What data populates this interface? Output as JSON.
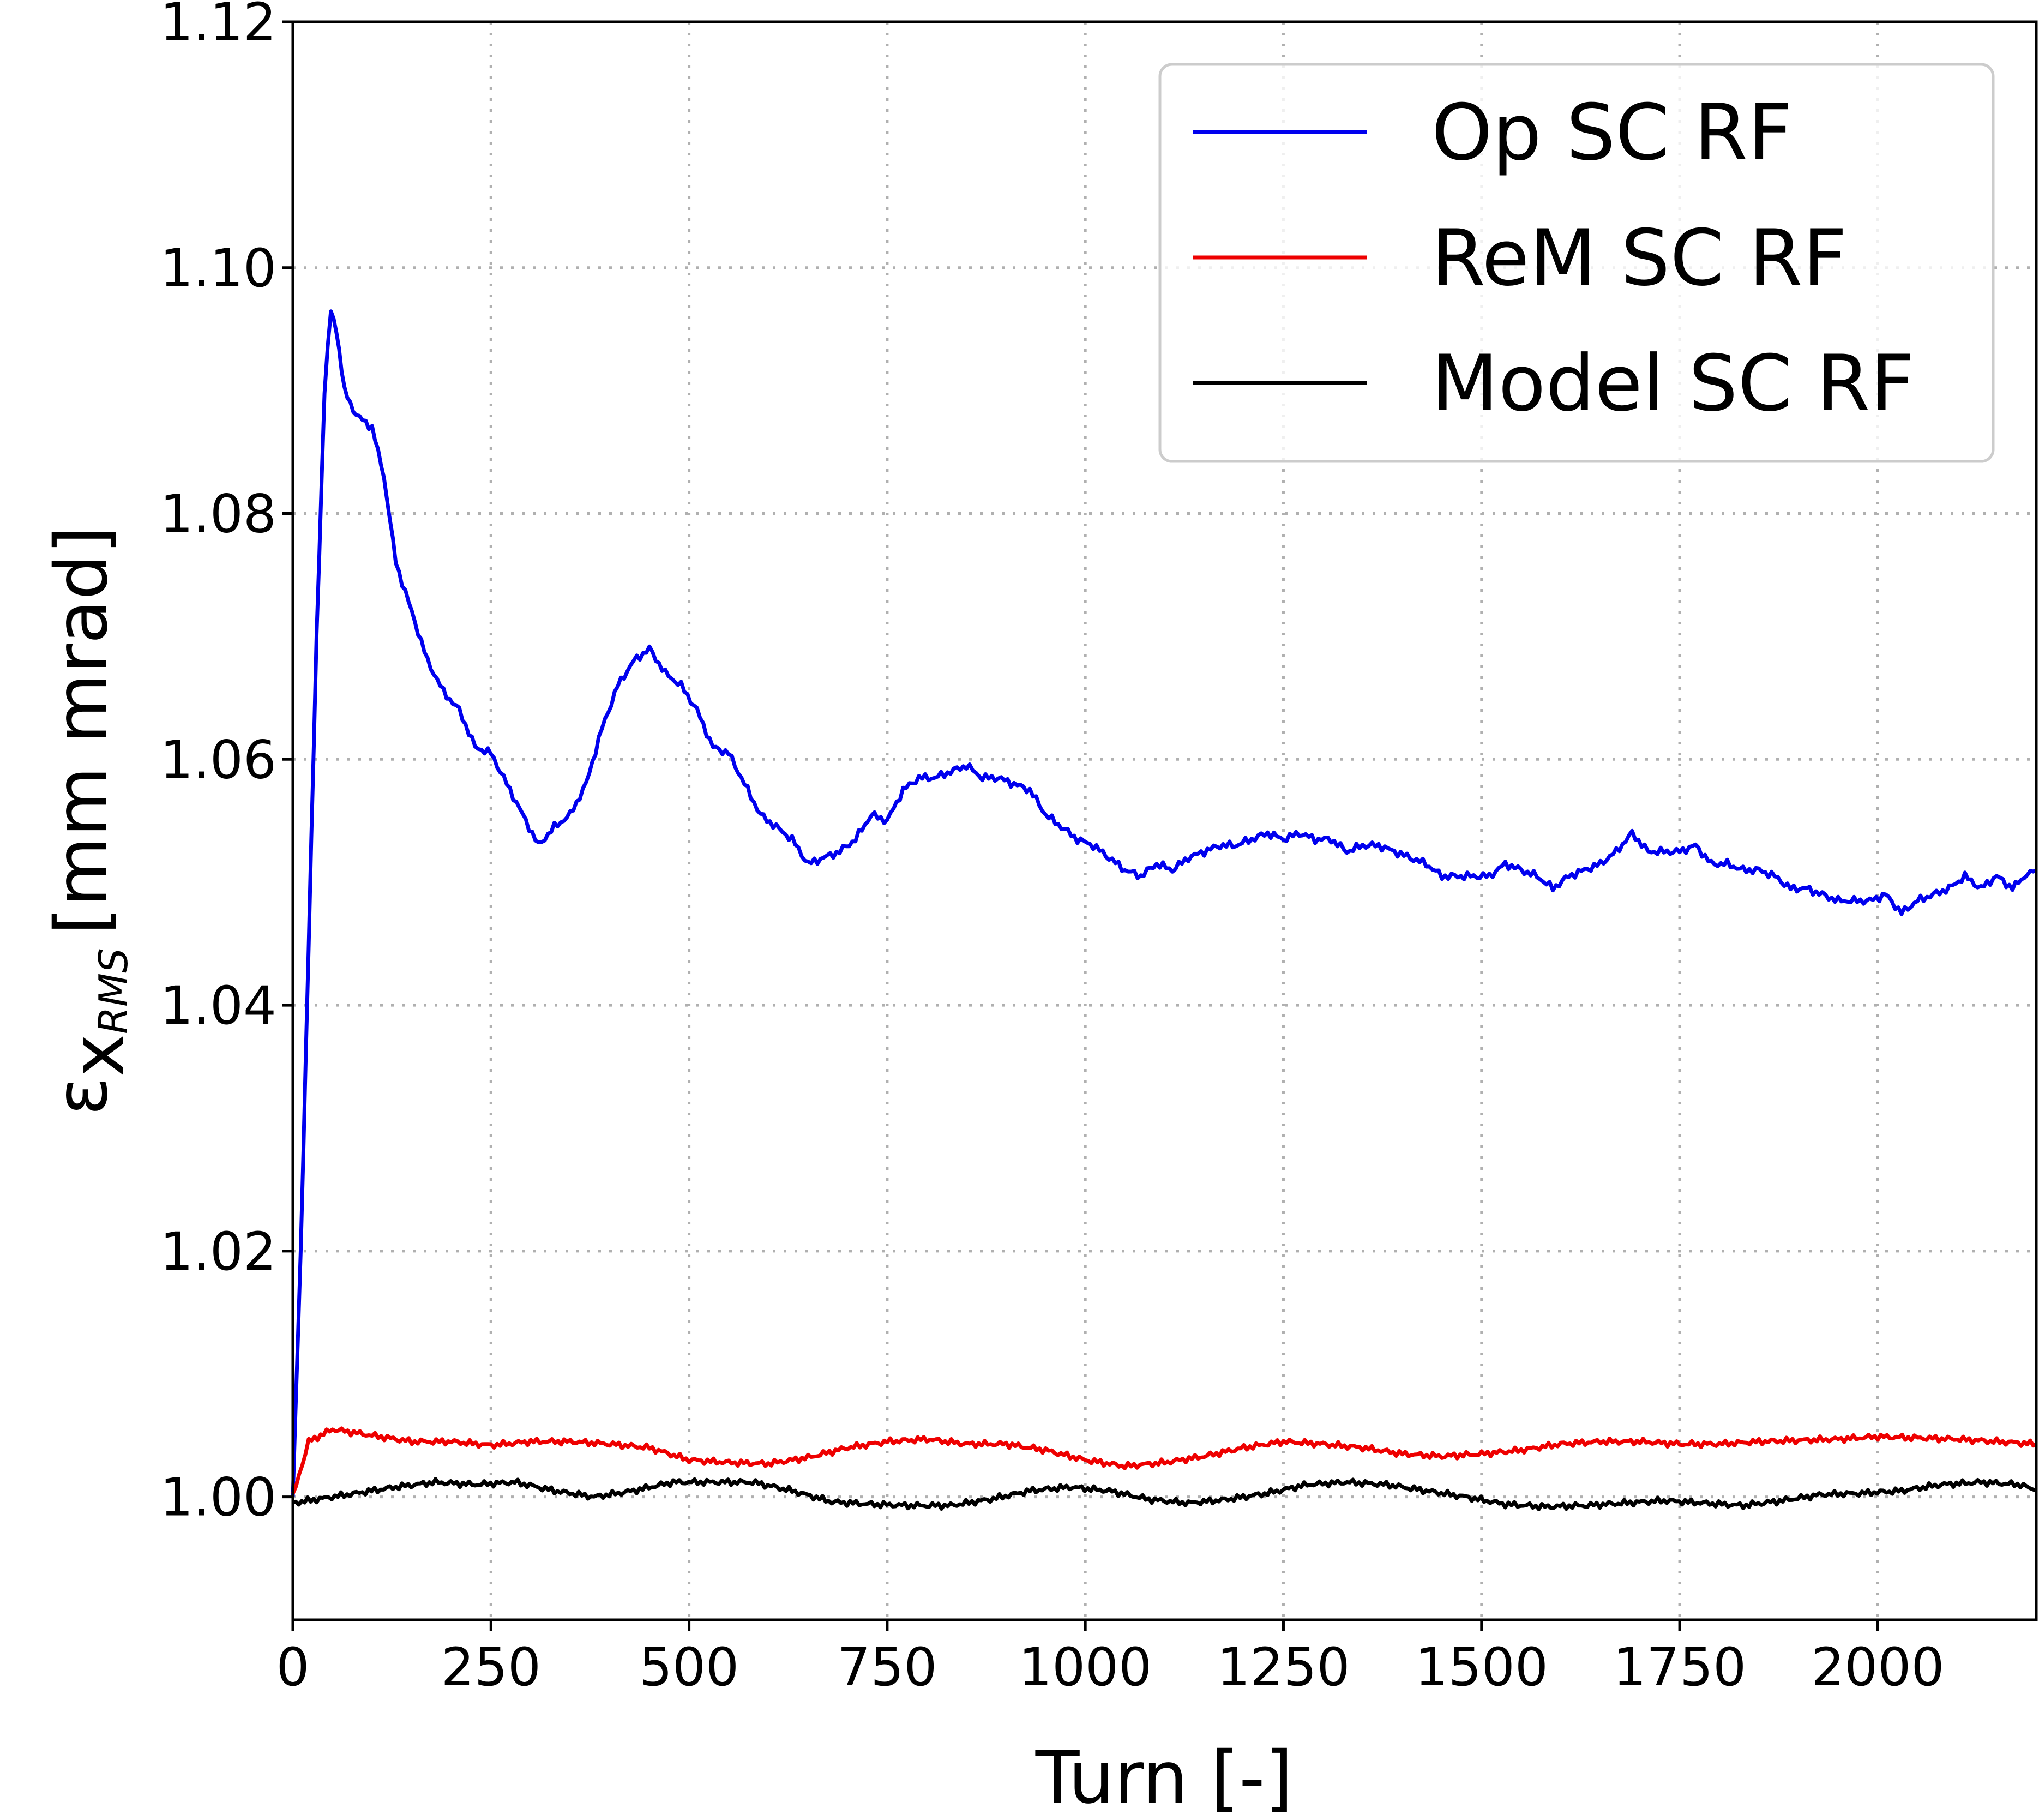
{
  "chart_data": {
    "type": "line",
    "xlabel": "Turn [-]",
    "ylabel": {
      "symbol": "ε",
      "subscript": "x",
      "subsubscript": "RMS",
      "units": "[mm mrad]"
    },
    "xlim": [
      0,
      2200
    ],
    "ylim": [
      0.99,
      1.12
    ],
    "x_ticks": [
      "0",
      "250",
      "500",
      "750",
      "1000",
      "1250",
      "1500",
      "1750",
      "2000"
    ],
    "y_ticks": [
      "1.00",
      "1.02",
      "1.04",
      "1.06",
      "1.08",
      "1.10",
      "1.12"
    ],
    "grid": true,
    "grid_style": "dotted",
    "legend_position": "top-right",
    "series": [
      {
        "name": "Op SC RF",
        "color": "#0000ee",
        "points": [
          [
            0,
            1.0
          ],
          [
            10,
            1.02
          ],
          [
            20,
            1.045
          ],
          [
            30,
            1.07
          ],
          [
            40,
            1.09
          ],
          [
            48,
            1.0965
          ],
          [
            55,
            1.095
          ],
          [
            65,
            1.09
          ],
          [
            80,
            1.088
          ],
          [
            100,
            1.087
          ],
          [
            115,
            1.083
          ],
          [
            130,
            1.076
          ],
          [
            150,
            1.072
          ],
          [
            170,
            1.068
          ],
          [
            190,
            1.0655
          ],
          [
            210,
            1.064
          ],
          [
            230,
            1.061
          ],
          [
            250,
            1.0605
          ],
          [
            270,
            1.058
          ],
          [
            290,
            1.0555
          ],
          [
            310,
            1.053
          ],
          [
            330,
            1.0545
          ],
          [
            350,
            1.0555
          ],
          [
            370,
            1.058
          ],
          [
            390,
            1.0625
          ],
          [
            410,
            1.066
          ],
          [
            430,
            1.068
          ],
          [
            450,
            1.069
          ],
          [
            470,
            1.067
          ],
          [
            490,
            1.066
          ],
          [
            510,
            1.064
          ],
          [
            530,
            1.061
          ],
          [
            550,
            1.0605
          ],
          [
            570,
            1.058
          ],
          [
            590,
            1.0555
          ],
          [
            610,
            1.0545
          ],
          [
            630,
            1.0535
          ],
          [
            650,
            1.0515
          ],
          [
            670,
            1.052
          ],
          [
            690,
            1.0525
          ],
          [
            710,
            1.0535
          ],
          [
            730,
            1.0555
          ],
          [
            750,
            1.055
          ],
          [
            770,
            1.0575
          ],
          [
            790,
            1.0585
          ],
          [
            810,
            1.0585
          ],
          [
            830,
            1.059
          ],
          [
            850,
            1.0595
          ],
          [
            870,
            1.0585
          ],
          [
            890,
            1.0585
          ],
          [
            910,
            1.058
          ],
          [
            930,
            1.0575
          ],
          [
            950,
            1.0555
          ],
          [
            970,
            1.0545
          ],
          [
            990,
            1.0535
          ],
          [
            1010,
            1.053
          ],
          [
            1030,
            1.052
          ],
          [
            1050,
            1.051
          ],
          [
            1070,
            1.0505
          ],
          [
            1090,
            1.0515
          ],
          [
            1110,
            1.051
          ],
          [
            1130,
            1.052
          ],
          [
            1150,
            1.0525
          ],
          [
            1170,
            1.053
          ],
          [
            1190,
            1.053
          ],
          [
            1210,
            1.0535
          ],
          [
            1230,
            1.054
          ],
          [
            1250,
            1.0535
          ],
          [
            1270,
            1.054
          ],
          [
            1290,
            1.0535
          ],
          [
            1310,
            1.0535
          ],
          [
            1330,
            1.0525
          ],
          [
            1350,
            1.053
          ],
          [
            1370,
            1.053
          ],
          [
            1390,
            1.0525
          ],
          [
            1410,
            1.052
          ],
          [
            1430,
            1.0515
          ],
          [
            1450,
            1.0505
          ],
          [
            1470,
            1.0505
          ],
          [
            1490,
            1.0505
          ],
          [
            1510,
            1.0505
          ],
          [
            1530,
            1.0515
          ],
          [
            1550,
            1.051
          ],
          [
            1570,
            1.0505
          ],
          [
            1590,
            1.0495
          ],
          [
            1610,
            1.0505
          ],
          [
            1630,
            1.051
          ],
          [
            1650,
            1.0515
          ],
          [
            1670,
            1.0525
          ],
          [
            1690,
            1.054
          ],
          [
            1710,
            1.0525
          ],
          [
            1730,
            1.0525
          ],
          [
            1750,
            1.0525
          ],
          [
            1770,
            1.053
          ],
          [
            1790,
            1.0515
          ],
          [
            1810,
            1.0515
          ],
          [
            1830,
            1.051
          ],
          [
            1850,
            1.051
          ],
          [
            1870,
            1.0505
          ],
          [
            1890,
            1.0495
          ],
          [
            1910,
            1.0495
          ],
          [
            1930,
            1.049
          ],
          [
            1950,
            1.0485
          ],
          [
            1970,
            1.0485
          ],
          [
            1990,
            1.0485
          ],
          [
            2010,
            1.049
          ],
          [
            2030,
            1.0475
          ],
          [
            2050,
            1.0485
          ],
          [
            2070,
            1.049
          ],
          [
            2090,
            1.0495
          ],
          [
            2110,
            1.0505
          ],
          [
            2130,
            1.0495
          ],
          [
            2150,
            1.0505
          ],
          [
            2170,
            1.0495
          ],
          [
            2185,
            1.0505
          ],
          [
            2200,
            1.051
          ]
        ]
      },
      {
        "name": "ReM SC RF",
        "color": "#ee0000",
        "points": [
          [
            0,
            1.0
          ],
          [
            20,
            1.0045
          ],
          [
            50,
            1.0055
          ],
          [
            100,
            1.005
          ],
          [
            150,
            1.0045
          ],
          [
            200,
            1.0045
          ],
          [
            250,
            1.0042
          ],
          [
            300,
            1.0045
          ],
          [
            350,
            1.0045
          ],
          [
            400,
            1.0043
          ],
          [
            450,
            1.004
          ],
          [
            500,
            1.003
          ],
          [
            550,
            1.0028
          ],
          [
            600,
            1.0027
          ],
          [
            650,
            1.0032
          ],
          [
            700,
            1.004
          ],
          [
            750,
            1.0045
          ],
          [
            800,
            1.0047
          ],
          [
            850,
            1.0043
          ],
          [
            900,
            1.0043
          ],
          [
            950,
            1.0038
          ],
          [
            1000,
            1.003
          ],
          [
            1050,
            1.0025
          ],
          [
            1100,
            1.0028
          ],
          [
            1150,
            1.0033
          ],
          [
            1200,
            1.004
          ],
          [
            1250,
            1.0045
          ],
          [
            1300,
            1.0043
          ],
          [
            1350,
            1.004
          ],
          [
            1400,
            1.0035
          ],
          [
            1450,
            1.0033
          ],
          [
            1500,
            1.0035
          ],
          [
            1550,
            1.0038
          ],
          [
            1600,
            1.0043
          ],
          [
            1650,
            1.0045
          ],
          [
            1700,
            1.0045
          ],
          [
            1750,
            1.0043
          ],
          [
            1800,
            1.0043
          ],
          [
            1850,
            1.0045
          ],
          [
            1900,
            1.0046
          ],
          [
            1950,
            1.0047
          ],
          [
            2000,
            1.0049
          ],
          [
            2050,
            1.0048
          ],
          [
            2100,
            1.0047
          ],
          [
            2150,
            1.0045
          ],
          [
            2200,
            1.0043
          ]
        ]
      },
      {
        "name": "Model SC RF",
        "color": "#000000",
        "points": [
          [
            0,
            0.9995
          ],
          [
            30,
            0.9998
          ],
          [
            80,
            1.0003
          ],
          [
            130,
            1.0008
          ],
          [
            180,
            1.0012
          ],
          [
            230,
            1.001
          ],
          [
            280,
            1.0012
          ],
          [
            330,
            1.0005
          ],
          [
            380,
            1.0
          ],
          [
            430,
            1.0005
          ],
          [
            480,
            1.0012
          ],
          [
            530,
            1.0012
          ],
          [
            580,
            1.0012
          ],
          [
            630,
            1.0005
          ],
          [
            680,
            0.9996
          ],
          [
            730,
            0.9994
          ],
          [
            780,
            0.9993
          ],
          [
            830,
            0.9993
          ],
          [
            880,
            0.9998
          ],
          [
            930,
            1.0005
          ],
          [
            980,
            1.0008
          ],
          [
            1030,
            1.0005
          ],
          [
            1080,
            0.9998
          ],
          [
            1130,
            0.9995
          ],
          [
            1180,
            0.9998
          ],
          [
            1230,
            1.0003
          ],
          [
            1280,
            1.001
          ],
          [
            1330,
            1.0012
          ],
          [
            1380,
            1.001
          ],
          [
            1430,
            1.0005
          ],
          [
            1480,
            1.0
          ],
          [
            1530,
            0.9994
          ],
          [
            1580,
            0.9992
          ],
          [
            1630,
            0.9993
          ],
          [
            1680,
            0.9995
          ],
          [
            1730,
            0.9997
          ],
          [
            1780,
            0.9995
          ],
          [
            1830,
            0.9993
          ],
          [
            1880,
            0.9997
          ],
          [
            1930,
            1.0002
          ],
          [
            1980,
            1.0003
          ],
          [
            2030,
            1.0005
          ],
          [
            2080,
            1.001
          ],
          [
            2130,
            1.0012
          ],
          [
            2180,
            1.001
          ],
          [
            2200,
            1.0005
          ]
        ]
      }
    ]
  }
}
